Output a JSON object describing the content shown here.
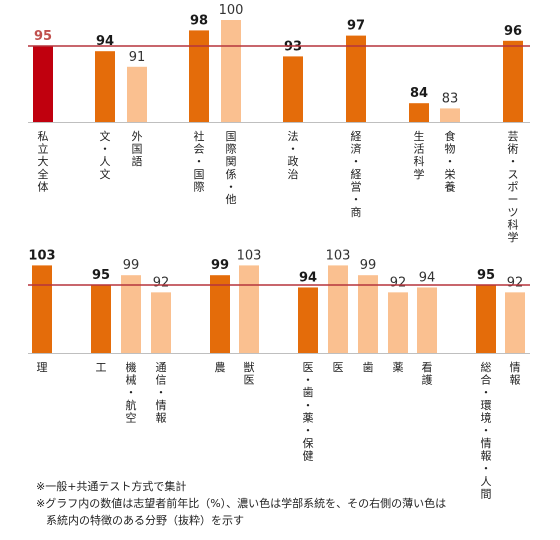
{
  "chart_data": [
    {
      "type": "bar",
      "reference_value": 95,
      "reference_color": "#b5343c",
      "categories": [
        "私立大全体",
        "文・人文",
        "外国語",
        "社会・国際",
        "国際関係・他",
        "法・政治",
        "経済・経営・商",
        "生活科学",
        "食物・栄養",
        "芸術・スポーツ科学"
      ],
      "values": [
        95,
        94,
        91,
        98,
        100,
        93,
        97,
        84,
        83,
        96
      ],
      "shades": [
        "total",
        "dark",
        "light",
        "dark",
        "light",
        "dark",
        "dark",
        "dark",
        "light",
        "dark"
      ],
      "groups": [
        [
          0
        ],
        [
          1,
          2
        ],
        [
          3,
          4
        ],
        [
          5
        ],
        [
          6
        ],
        [
          7,
          8
        ],
        [
          9
        ]
      ]
    },
    {
      "type": "bar",
      "reference_value": 95,
      "reference_color": "#b5343c",
      "categories": [
        "理",
        "工",
        "機械・航空",
        "通信・情報",
        "農",
        "獣医",
        "医・歯・薬・保健",
        "医",
        "歯",
        "薬",
        "看護",
        "総合・環境・情報・人間",
        "情報"
      ],
      "values": [
        103,
        95,
        99,
        92,
        99,
        103,
        94,
        103,
        99,
        92,
        94,
        95,
        92
      ],
      "shades": [
        "dark",
        "dark",
        "light",
        "light",
        "dark",
        "light",
        "dark",
        "light",
        "light",
        "light",
        "light",
        "dark",
        "light"
      ],
      "groups": [
        [
          0
        ],
        [
          1,
          2,
          3
        ],
        [
          4,
          5
        ],
        [
          6,
          7,
          8,
          9,
          10
        ],
        [
          11,
          12
        ]
      ]
    }
  ],
  "colors": {
    "total": "#c0000e",
    "dark": "#e46c0a",
    "light": "#fac090",
    "total_label": "#c0504d",
    "dark_label": "#1a1a1a",
    "light_label": "#333333",
    "axis": "#bfbfbf"
  },
  "notes": {
    "line1": "※一般+共通テスト方式で集計",
    "line2": "※グラフ内の数値は志望者前年比（%）、濃い色は学部系統を、その右側の薄い色は",
    "line3": "系統内の特徴のある分野（抜粋）を示す"
  }
}
